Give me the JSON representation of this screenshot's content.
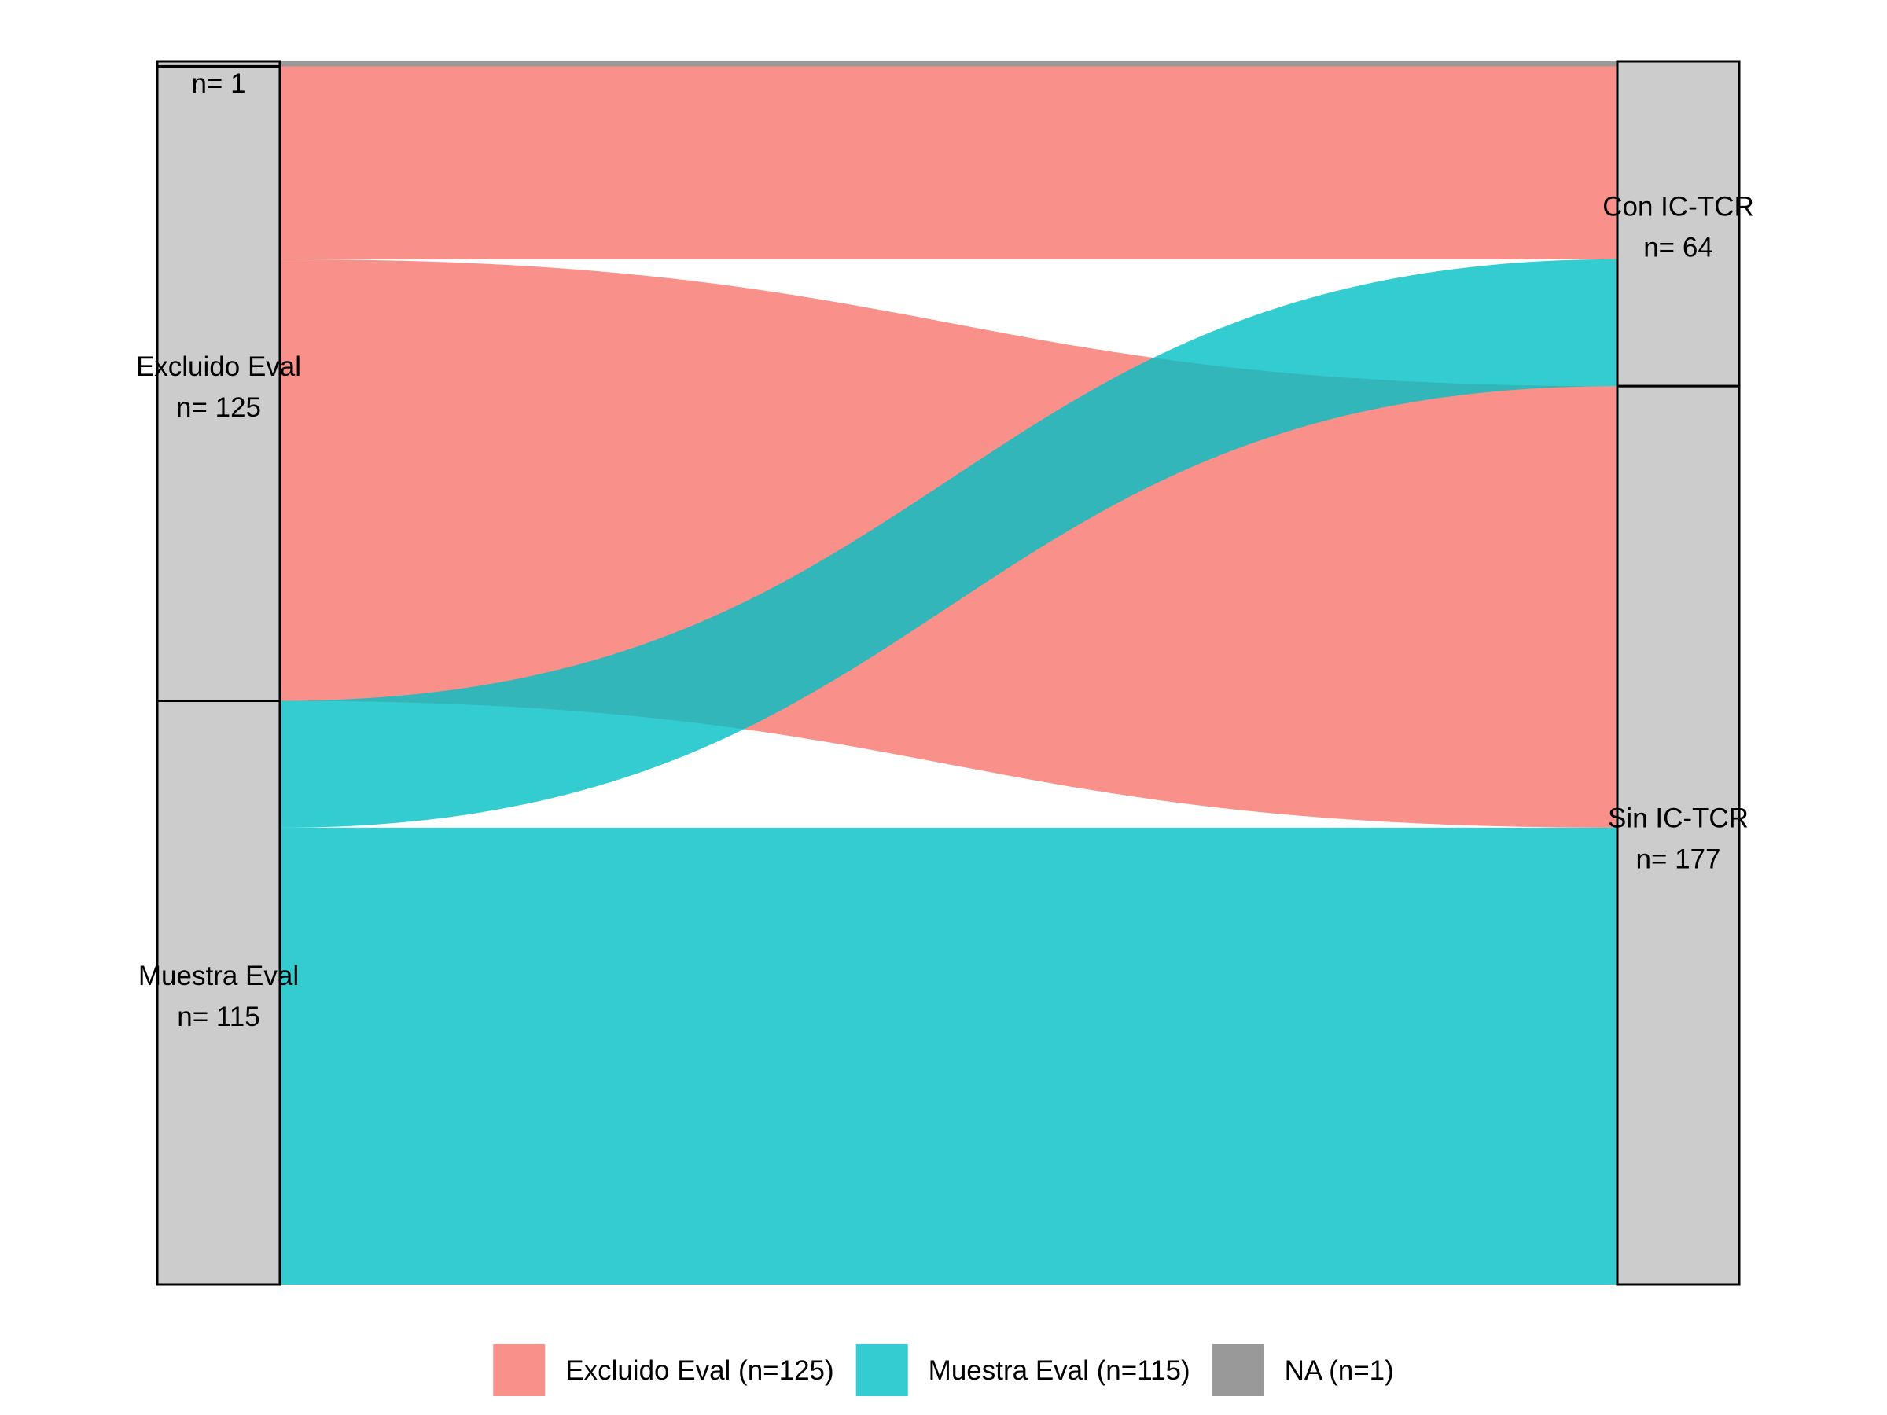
{
  "chart_data": {
    "type": "alluvial",
    "title": "",
    "xlabel": "",
    "ylabel": "",
    "total": 241,
    "axes": [
      {
        "strata": [
          {
            "key": "NA",
            "label": "",
            "count_label": "n= 1",
            "value": 1
          },
          {
            "key": "Excluido",
            "label": "Excluido Eval",
            "count_label": "n= 125",
            "value": 125
          },
          {
            "key": "Muestra",
            "label": "Muestra Eval",
            "count_label": "n= 115",
            "value": 115
          }
        ]
      },
      {
        "strata": [
          {
            "key": "Con",
            "label": "Con IC-TCR",
            "count_label": "n= 64",
            "value": 64
          },
          {
            "key": "Sin",
            "label": "Sin IC-TCR",
            "count_label": "n= 177",
            "value": 177
          }
        ]
      }
    ],
    "flows": [
      {
        "from": "NA",
        "to": "Con",
        "value": 1,
        "group": "NA"
      },
      {
        "from": "Excluido",
        "to": "Con",
        "value": 38,
        "group": "Excluido"
      },
      {
        "from": "Excluido",
        "to": "Sin",
        "value": 87,
        "group": "Excluido"
      },
      {
        "from": "Muestra",
        "to": "Con",
        "value": 25,
        "group": "Muestra"
      },
      {
        "from": "Muestra",
        "to": "Sin",
        "value": 90,
        "group": "Muestra"
      }
    ],
    "legend": {
      "position": "bottom",
      "items": [
        {
          "group": "Excluido",
          "label": "Excluido Eval (n=125)"
        },
        {
          "group": "Muestra",
          "label": "Muestra Eval (n=115)"
        },
        {
          "group": "NA",
          "label": "NA (n=1)"
        }
      ]
    },
    "colors": {
      "Excluido": "#F8766D",
      "Muestra": "#00BFC4",
      "NA": "#7F7F7F",
      "stratum_fill": "#CCCCCC",
      "stratum_stroke": "#000000"
    },
    "grid": false
  }
}
